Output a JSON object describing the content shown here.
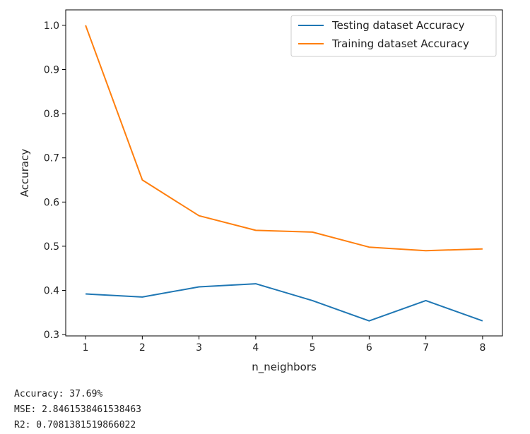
{
  "chart_data": {
    "type": "line",
    "xlabel": "n_neighbors",
    "ylabel": "Accuracy",
    "x": [
      1,
      2,
      3,
      4,
      5,
      6,
      7,
      8
    ],
    "xlim": [
      0.65,
      8.35
    ],
    "ylim": [
      0.297,
      1.035
    ],
    "xticks": [
      1,
      2,
      3,
      4,
      5,
      6,
      7,
      8
    ],
    "yticks": [
      "0.3",
      "0.4",
      "0.5",
      "0.6",
      "0.7",
      "0.8",
      "0.9",
      "1.0"
    ],
    "legend_position": "top-right",
    "series": [
      {
        "name": "Testing dataset Accuracy",
        "color": "#1f77b4",
        "values": [
          0.392,
          0.385,
          0.408,
          0.415,
          0.377,
          0.331,
          0.377,
          0.331
        ]
      },
      {
        "name": "Training dataset Accuracy",
        "color": "#ff7f0e",
        "values": [
          1.0,
          0.65,
          0.569,
          0.536,
          0.532,
          0.498,
          0.49,
          0.494
        ]
      }
    ]
  },
  "console": {
    "accuracy": "Accuracy: 37.69%",
    "mse": "MSE: 2.8461538461538463",
    "r2": "R2: 0.7081381519866022"
  }
}
